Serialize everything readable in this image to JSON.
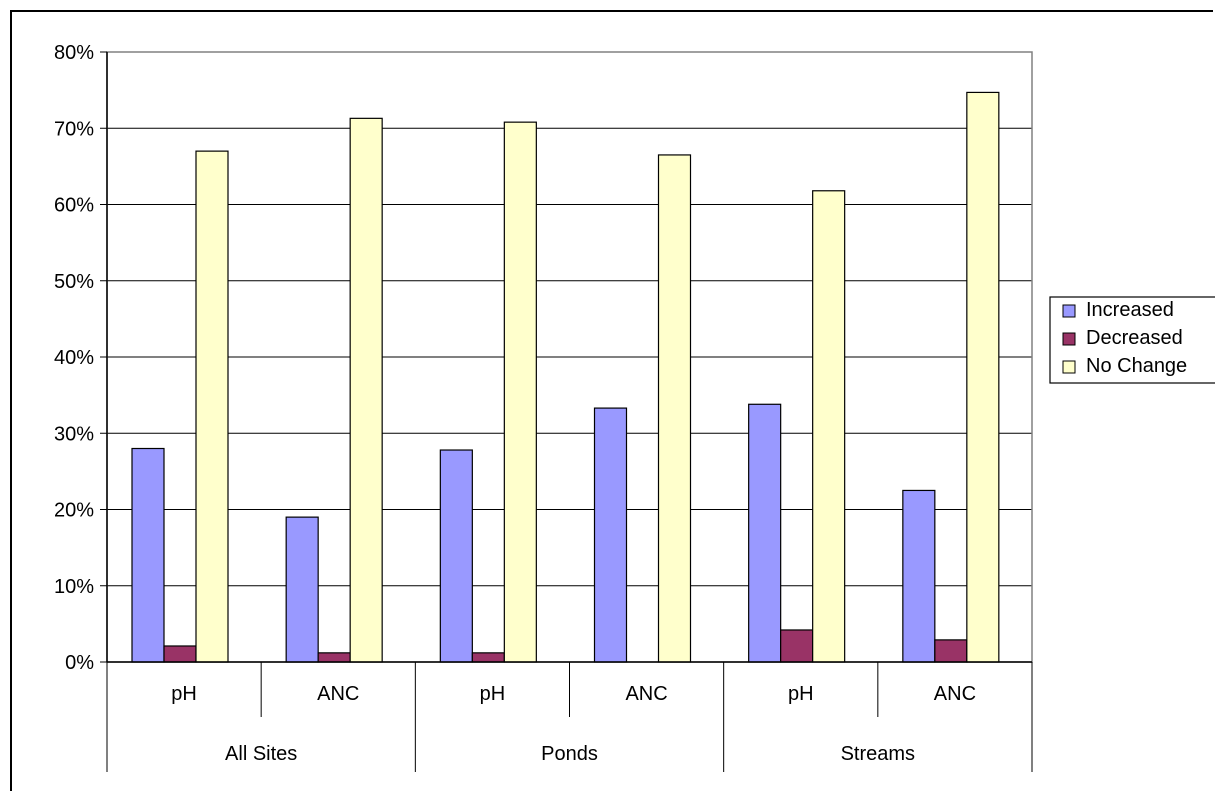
{
  "chart_data": {
    "type": "bar",
    "title": "",
    "xlabel": "",
    "ylabel": "",
    "ylim": [
      0,
      0.8
    ],
    "yticks": [
      "0%",
      "10%",
      "20%",
      "30%",
      "40%",
      "50%",
      "60%",
      "70%",
      "80%"
    ],
    "categories": [
      "pH",
      "ANC",
      "pH",
      "ANC",
      "pH",
      "ANC"
    ],
    "groups": [
      {
        "label": "All Sites",
        "span": 2
      },
      {
        "label": "Ponds",
        "span": 2
      },
      {
        "label": "Streams",
        "span": 2
      }
    ],
    "series": [
      {
        "name": "Increased",
        "color": "#9999ff",
        "values": [
          0.28,
          0.19,
          0.278,
          0.333,
          0.338,
          0.225
        ]
      },
      {
        "name": "Decreased",
        "color": "#993366",
        "values": [
          0.021,
          0.012,
          0.012,
          0.0,
          0.042,
          0.029
        ]
      },
      {
        "name": "No Change",
        "color": "#ffffcc",
        "values": [
          0.67,
          0.713,
          0.708,
          0.665,
          0.618,
          0.747
        ]
      }
    ],
    "grid": true,
    "legend": "right"
  }
}
